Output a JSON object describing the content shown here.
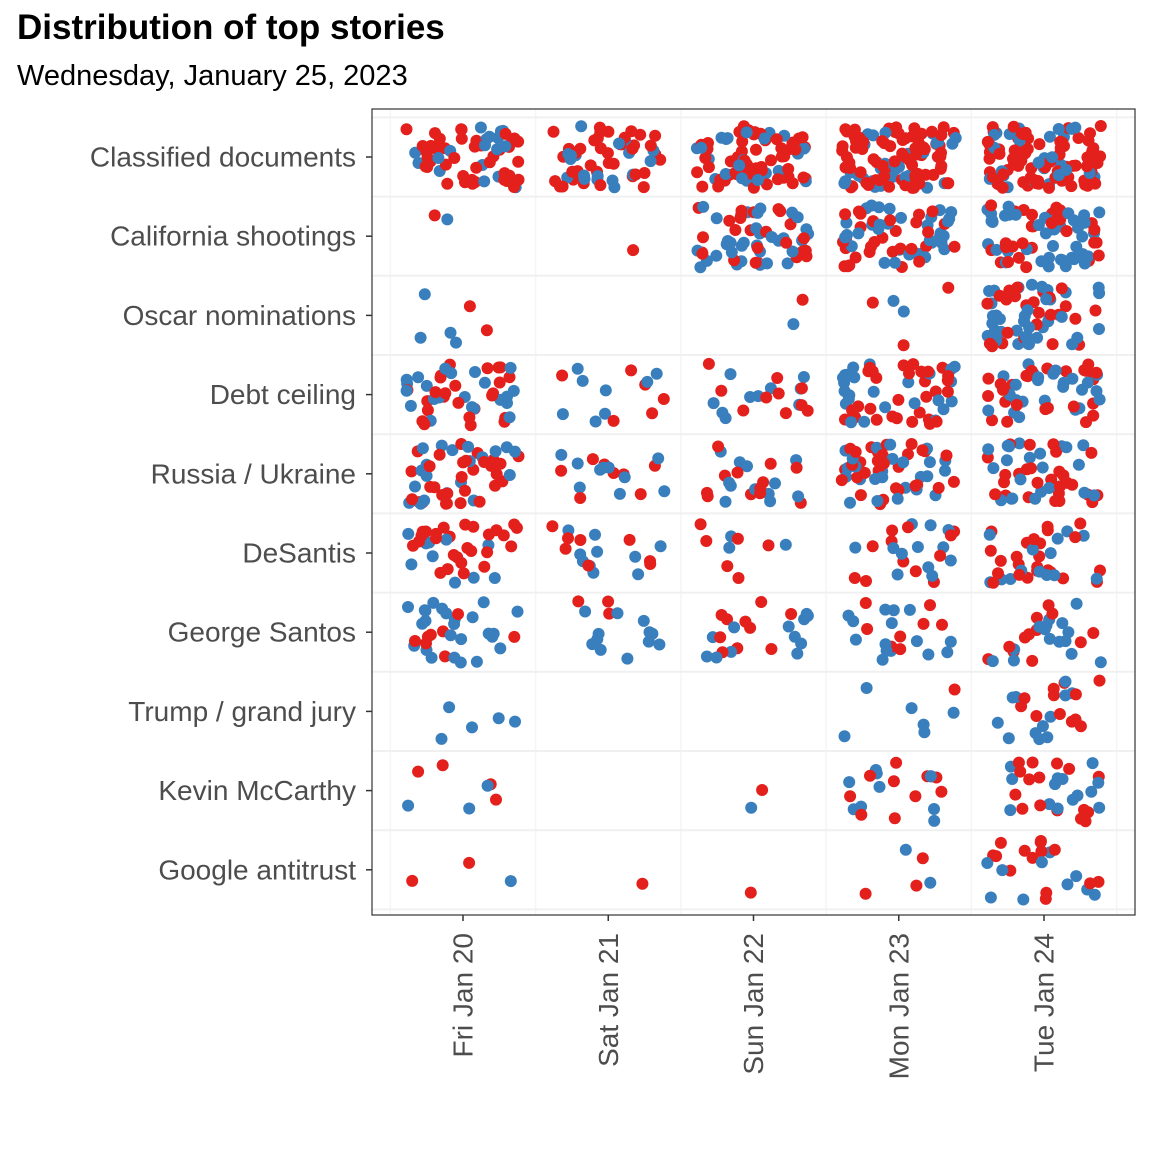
{
  "title": "Distribution of top stories",
  "subtitle": "Wednesday, January 25, 2023",
  "colors": {
    "blue": "#3a7fbd",
    "red": "#e3201c",
    "grid": "#ebebeb",
    "axis_text": "#4d4d4d"
  },
  "chart_data": {
    "type": "scatter",
    "title": "Distribution of top stories",
    "subtitle": "Wednesday, January 25, 2023",
    "jitter": true,
    "grid": true,
    "legend": "none",
    "x_categories": [
      "Fri Jan 20",
      "Sat Jan 21",
      "Sun Jan 22",
      "Mon Jan 23",
      "Tue Jan 24"
    ],
    "y_categories": [
      "Classified documents",
      "California shootings",
      "Oscar nominations",
      "Debt ceiling",
      "Russia / Ukraine",
      "DeSantis",
      "George Santos",
      "Trump / grand jury",
      "Kevin McCarthy",
      "Google antitrust"
    ],
    "point_counts_note": "approximate number of points per story and day, split into blue and red groups",
    "counts": [
      {
        "story": "Classified documents",
        "days": [
          [
            18,
            42
          ],
          [
            18,
            40
          ],
          [
            25,
            55
          ],
          [
            30,
            75
          ],
          [
            30,
            80
          ]
        ]
      },
      {
        "story": "California shootings",
        "days": [
          [
            1,
            1
          ],
          [
            0,
            1
          ],
          [
            35,
            25
          ],
          [
            35,
            30
          ],
          [
            45,
            30
          ]
        ]
      },
      {
        "story": "Oscar nominations",
        "days": [
          [
            4,
            2
          ],
          [
            0,
            0
          ],
          [
            1,
            1
          ],
          [
            2,
            3
          ],
          [
            40,
            25
          ]
        ]
      },
      {
        "story": "Debt ceiling",
        "days": [
          [
            22,
            25
          ],
          [
            8,
            6
          ],
          [
            10,
            10
          ],
          [
            25,
            30
          ],
          [
            25,
            25
          ]
        ]
      },
      {
        "story": "Russia / Ukraine",
        "days": [
          [
            20,
            30
          ],
          [
            10,
            8
          ],
          [
            12,
            12
          ],
          [
            25,
            30
          ],
          [
            22,
            28
          ]
        ]
      },
      {
        "story": "DeSantis",
        "days": [
          [
            10,
            28
          ],
          [
            10,
            8
          ],
          [
            3,
            6
          ],
          [
            12,
            12
          ],
          [
            14,
            24
          ]
        ]
      },
      {
        "story": "George Santos",
        "days": [
          [
            25,
            8
          ],
          [
            12,
            3
          ],
          [
            12,
            10
          ],
          [
            15,
            8
          ],
          [
            15,
            12
          ]
        ]
      },
      {
        "story": "Trump / grand jury",
        "days": [
          [
            5,
            0
          ],
          [
            0,
            0
          ],
          [
            0,
            0
          ],
          [
            6,
            1
          ],
          [
            12,
            12
          ]
        ]
      },
      {
        "story": "Kevin McCarthy",
        "days": [
          [
            3,
            4
          ],
          [
            0,
            0
          ],
          [
            1,
            1
          ],
          [
            10,
            10
          ],
          [
            14,
            16
          ]
        ]
      },
      {
        "story": "Google antitrust",
        "days": [
          [
            1,
            2
          ],
          [
            0,
            1
          ],
          [
            0,
            1
          ],
          [
            2,
            3
          ],
          [
            10,
            14
          ]
        ]
      }
    ]
  }
}
